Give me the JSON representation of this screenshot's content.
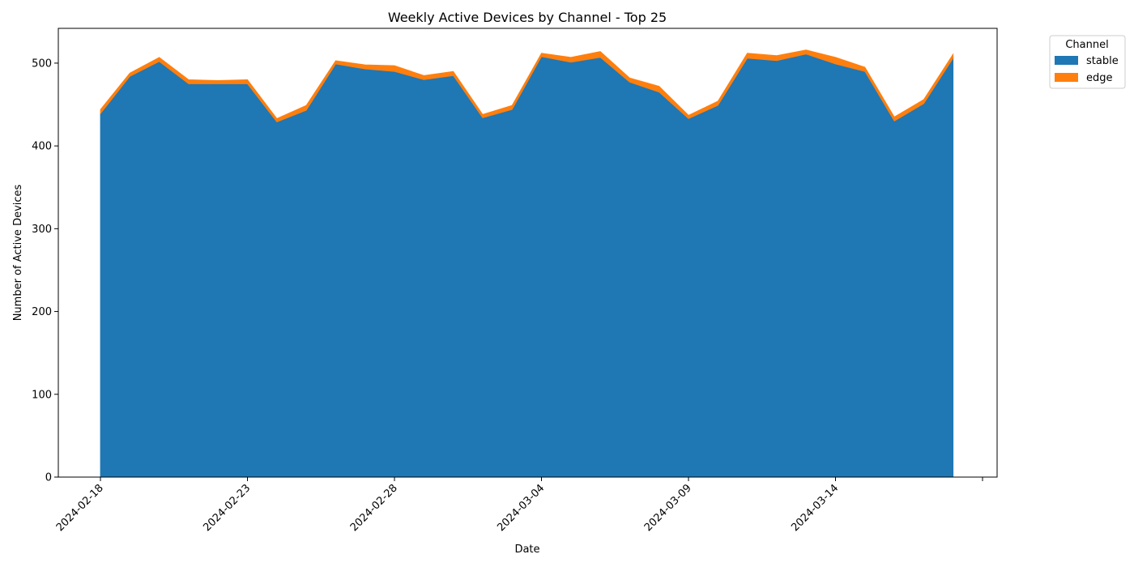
{
  "chart_data": {
    "type": "area",
    "stacked": true,
    "title": "Weekly Active Devices by Channel - Top 25",
    "xlabel": "Date",
    "ylabel": "Number of Active Devices",
    "x": [
      "2024-02-18",
      "2024-02-19",
      "2024-02-20",
      "2024-02-21",
      "2024-02-22",
      "2024-02-23",
      "2024-02-24",
      "2024-02-25",
      "2024-02-26",
      "2024-02-27",
      "2024-02-28",
      "2024-02-29",
      "2024-03-01",
      "2024-03-02",
      "2024-03-03",
      "2024-03-04",
      "2024-03-05",
      "2024-03-06",
      "2024-03-07",
      "2024-03-08",
      "2024-03-09",
      "2024-03-10",
      "2024-03-11",
      "2024-03-12",
      "2024-03-13",
      "2024-03-14",
      "2024-03-15",
      "2024-03-16",
      "2024-03-17",
      "2024-03-18"
    ],
    "x_ticks": [
      "2024-02-18",
      "2024-02-23",
      "2024-02-28",
      "2024-03-04",
      "2024-03-09",
      "2024-03-14",
      ""
    ],
    "ylim": [
      0,
      542
    ],
    "y_ticks": [
      0,
      100,
      200,
      300,
      400,
      500
    ],
    "series": [
      {
        "name": "stable",
        "color": "#1f77b4",
        "values": [
          439,
          484,
          502,
          475,
          475,
          475,
          429,
          443,
          499,
          493,
          490,
          480,
          485,
          434,
          444,
          508,
          501,
          507,
          477,
          465,
          433,
          449,
          506,
          503,
          511,
          499,
          490,
          430,
          451,
          506
        ]
      },
      {
        "name": "edge",
        "color": "#ff7f0e",
        "values": [
          5,
          4,
          5,
          5,
          4,
          5,
          4,
          6,
          4,
          5,
          7,
          5,
          5,
          4,
          5,
          4,
          6,
          7,
          5,
          7,
          4,
          5,
          6,
          6,
          5,
          8,
          5,
          5,
          5,
          5
        ]
      }
    ],
    "legend": {
      "title": "Channel",
      "placement": "outside top-right"
    },
    "grid": false
  }
}
